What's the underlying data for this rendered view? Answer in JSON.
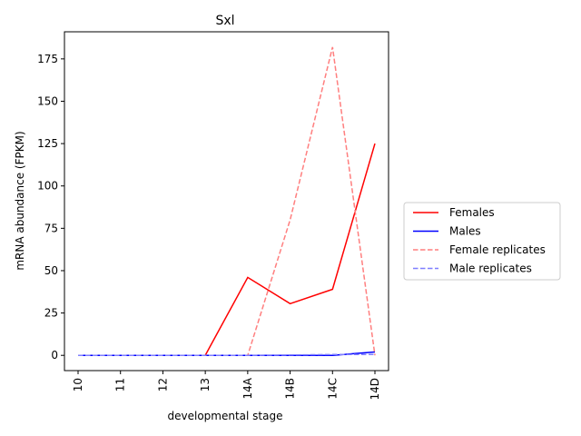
{
  "chart_data": {
    "type": "line",
    "title": "Sxl",
    "xlabel": "developmental stage",
    "ylabel": "mRNA abundance (FPKM)",
    "categories": [
      "10",
      "11",
      "12",
      "13",
      "14A",
      "14B",
      "14C",
      "14D"
    ],
    "ylim": [
      -9,
      191
    ],
    "yticks": [
      0,
      25,
      50,
      75,
      100,
      125,
      150,
      175
    ],
    "grid": false,
    "legend_position": "right",
    "series": [
      {
        "name": "Females",
        "color": "#ff0000",
        "style": "solid",
        "values": [
          0,
          0,
          0,
          0,
          46,
          30.5,
          39,
          125
        ]
      },
      {
        "name": "Males",
        "color": "#0000ff",
        "style": "solid",
        "values": [
          0,
          0,
          0,
          0,
          0,
          0,
          0,
          2
        ]
      },
      {
        "name": "Female replicates",
        "color": "#ff7f7f",
        "style": "dashed",
        "values": [
          0,
          0,
          0,
          0,
          0,
          80,
          182,
          0
        ]
      },
      {
        "name": "Male replicates",
        "color": "#7f7fff",
        "style": "dashed",
        "values": [
          0,
          0,
          0,
          0,
          0,
          0.2,
          0.5,
          0.5
        ]
      }
    ]
  }
}
